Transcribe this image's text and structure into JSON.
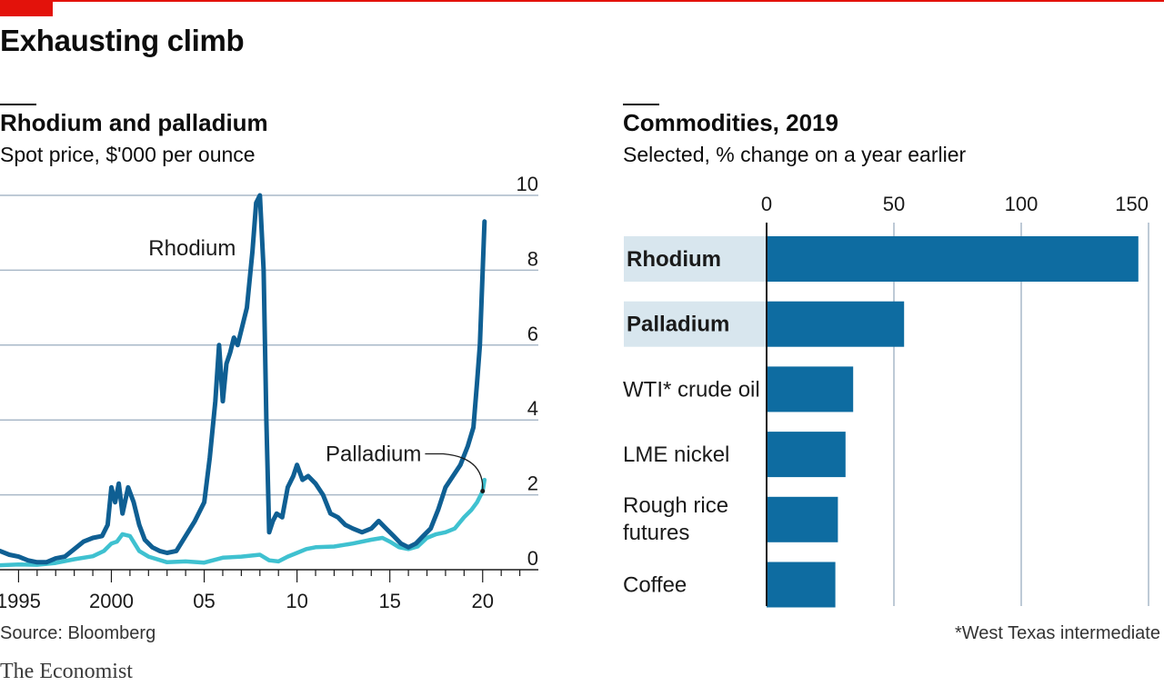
{
  "headline": "Exhausting climb",
  "source": "Source: Bloomberg",
  "footnote": "*West Texas intermediate",
  "brand": "The Economist",
  "colors": {
    "accent": "#e3120b",
    "rhodium": "#0f5f93",
    "palladium": "#3fc1d0",
    "bar": "#0e6ca1",
    "highlight": "#d8e6ee",
    "grid": "#a9b8c8"
  },
  "chart_data": [
    {
      "type": "line",
      "title": "Rhodium and palladium",
      "subtitle": "Spot price, $'000 per ounce",
      "x_ticks": [
        1995,
        2000,
        2005,
        2010,
        2015,
        2020
      ],
      "x_tick_labels": [
        "1995",
        "2000",
        "05",
        "10",
        "15",
        "20"
      ],
      "xlim": [
        1994,
        2023
      ],
      "ylim": [
        0,
        10
      ],
      "y_ticks": [
        0,
        2,
        4,
        6,
        8,
        10
      ],
      "y_axis_side": "right",
      "grid": true,
      "series": [
        {
          "name": "Rhodium",
          "x": [
            1994.0,
            1994.5,
            1995.0,
            1995.5,
            1996.0,
            1996.5,
            1997.0,
            1997.5,
            1998.0,
            1998.5,
            1999.0,
            1999.5,
            1999.8,
            2000.0,
            2000.2,
            2000.4,
            2000.6,
            2000.9,
            2001.2,
            2001.5,
            2001.8,
            2002.2,
            2002.6,
            2003.0,
            2003.5,
            2004.0,
            2004.5,
            2005.0,
            2005.3,
            2005.6,
            2005.8,
            2006.0,
            2006.2,
            2006.4,
            2006.6,
            2006.8,
            2007.0,
            2007.3,
            2007.6,
            2007.8,
            2008.0,
            2008.2,
            2008.35,
            2008.5,
            2008.7,
            2008.9,
            2009.2,
            2009.5,
            2009.8,
            2010.0,
            2010.3,
            2010.6,
            2011.0,
            2011.4,
            2011.8,
            2012.2,
            2012.6,
            2013.0,
            2013.5,
            2014.0,
            2014.4,
            2014.8,
            2015.2,
            2015.6,
            2016.0,
            2016.4,
            2016.8,
            2017.2,
            2017.6,
            2018.0,
            2018.4,
            2018.8,
            2019.2,
            2019.5,
            2019.7,
            2019.85,
            2020.0,
            2020.1
          ],
          "values": [
            0.5,
            0.4,
            0.35,
            0.25,
            0.2,
            0.2,
            0.3,
            0.35,
            0.55,
            0.75,
            0.85,
            0.9,
            1.2,
            2.2,
            1.8,
            2.3,
            1.5,
            2.2,
            1.8,
            1.2,
            0.8,
            0.6,
            0.5,
            0.45,
            0.5,
            0.9,
            1.3,
            1.8,
            3.0,
            4.5,
            6.0,
            4.5,
            5.5,
            5.8,
            6.2,
            6.0,
            6.4,
            7.0,
            8.5,
            9.8,
            10.0,
            8.0,
            4.0,
            1.0,
            1.3,
            1.5,
            1.4,
            2.2,
            2.5,
            2.8,
            2.4,
            2.5,
            2.3,
            2.0,
            1.5,
            1.4,
            1.2,
            1.1,
            1.0,
            1.1,
            1.3,
            1.1,
            0.9,
            0.7,
            0.6,
            0.7,
            0.9,
            1.1,
            1.6,
            2.2,
            2.5,
            2.8,
            3.3,
            3.8,
            5.0,
            6.0,
            8.0,
            9.3
          ]
        },
        {
          "name": "Palladium",
          "x": [
            1994.0,
            1995.0,
            1996.0,
            1997.0,
            1998.0,
            1999.0,
            1999.6,
            2000.0,
            2000.3,
            2000.6,
            2001.0,
            2001.5,
            2002.0,
            2003.0,
            2004.0,
            2005.0,
            2006.0,
            2007.0,
            2008.0,
            2008.5,
            2009.0,
            2009.5,
            2010.0,
            2010.5,
            2011.0,
            2012.0,
            2013.0,
            2014.0,
            2014.6,
            2015.0,
            2015.5,
            2016.0,
            2016.5,
            2017.0,
            2017.5,
            2018.0,
            2018.5,
            2019.0,
            2019.4,
            2019.7,
            2020.0,
            2020.1
          ],
          "values": [
            0.12,
            0.14,
            0.13,
            0.18,
            0.28,
            0.36,
            0.5,
            0.7,
            0.75,
            0.95,
            0.9,
            0.5,
            0.35,
            0.2,
            0.22,
            0.19,
            0.32,
            0.35,
            0.4,
            0.25,
            0.22,
            0.35,
            0.45,
            0.55,
            0.6,
            0.62,
            0.7,
            0.8,
            0.85,
            0.75,
            0.6,
            0.55,
            0.62,
            0.85,
            0.95,
            1.0,
            1.1,
            1.4,
            1.6,
            1.8,
            2.1,
            2.4
          ]
        }
      ],
      "annotations": [
        {
          "text": "Rhodium",
          "x": 2002.0,
          "y": 8.4
        },
        {
          "text": "Palladium",
          "x": 2016.7,
          "y": 2.9
        }
      ]
    },
    {
      "type": "bar",
      "orientation": "horizontal",
      "title": "Commodities, 2019",
      "subtitle": "Selected, % change on a year earlier",
      "xlim": [
        0,
        150
      ],
      "x_ticks": [
        0,
        50,
        100,
        150
      ],
      "x_axis_side": "top",
      "grid": true,
      "categories": [
        "Rhodium",
        "Palladium",
        "WTI* crude oil",
        "LME nickel",
        "Rough rice\nfutures",
        "Coffee"
      ],
      "values": [
        146,
        54,
        34,
        31,
        28,
        27
      ],
      "highlighted": [
        "Rhodium",
        "Palladium"
      ]
    }
  ]
}
